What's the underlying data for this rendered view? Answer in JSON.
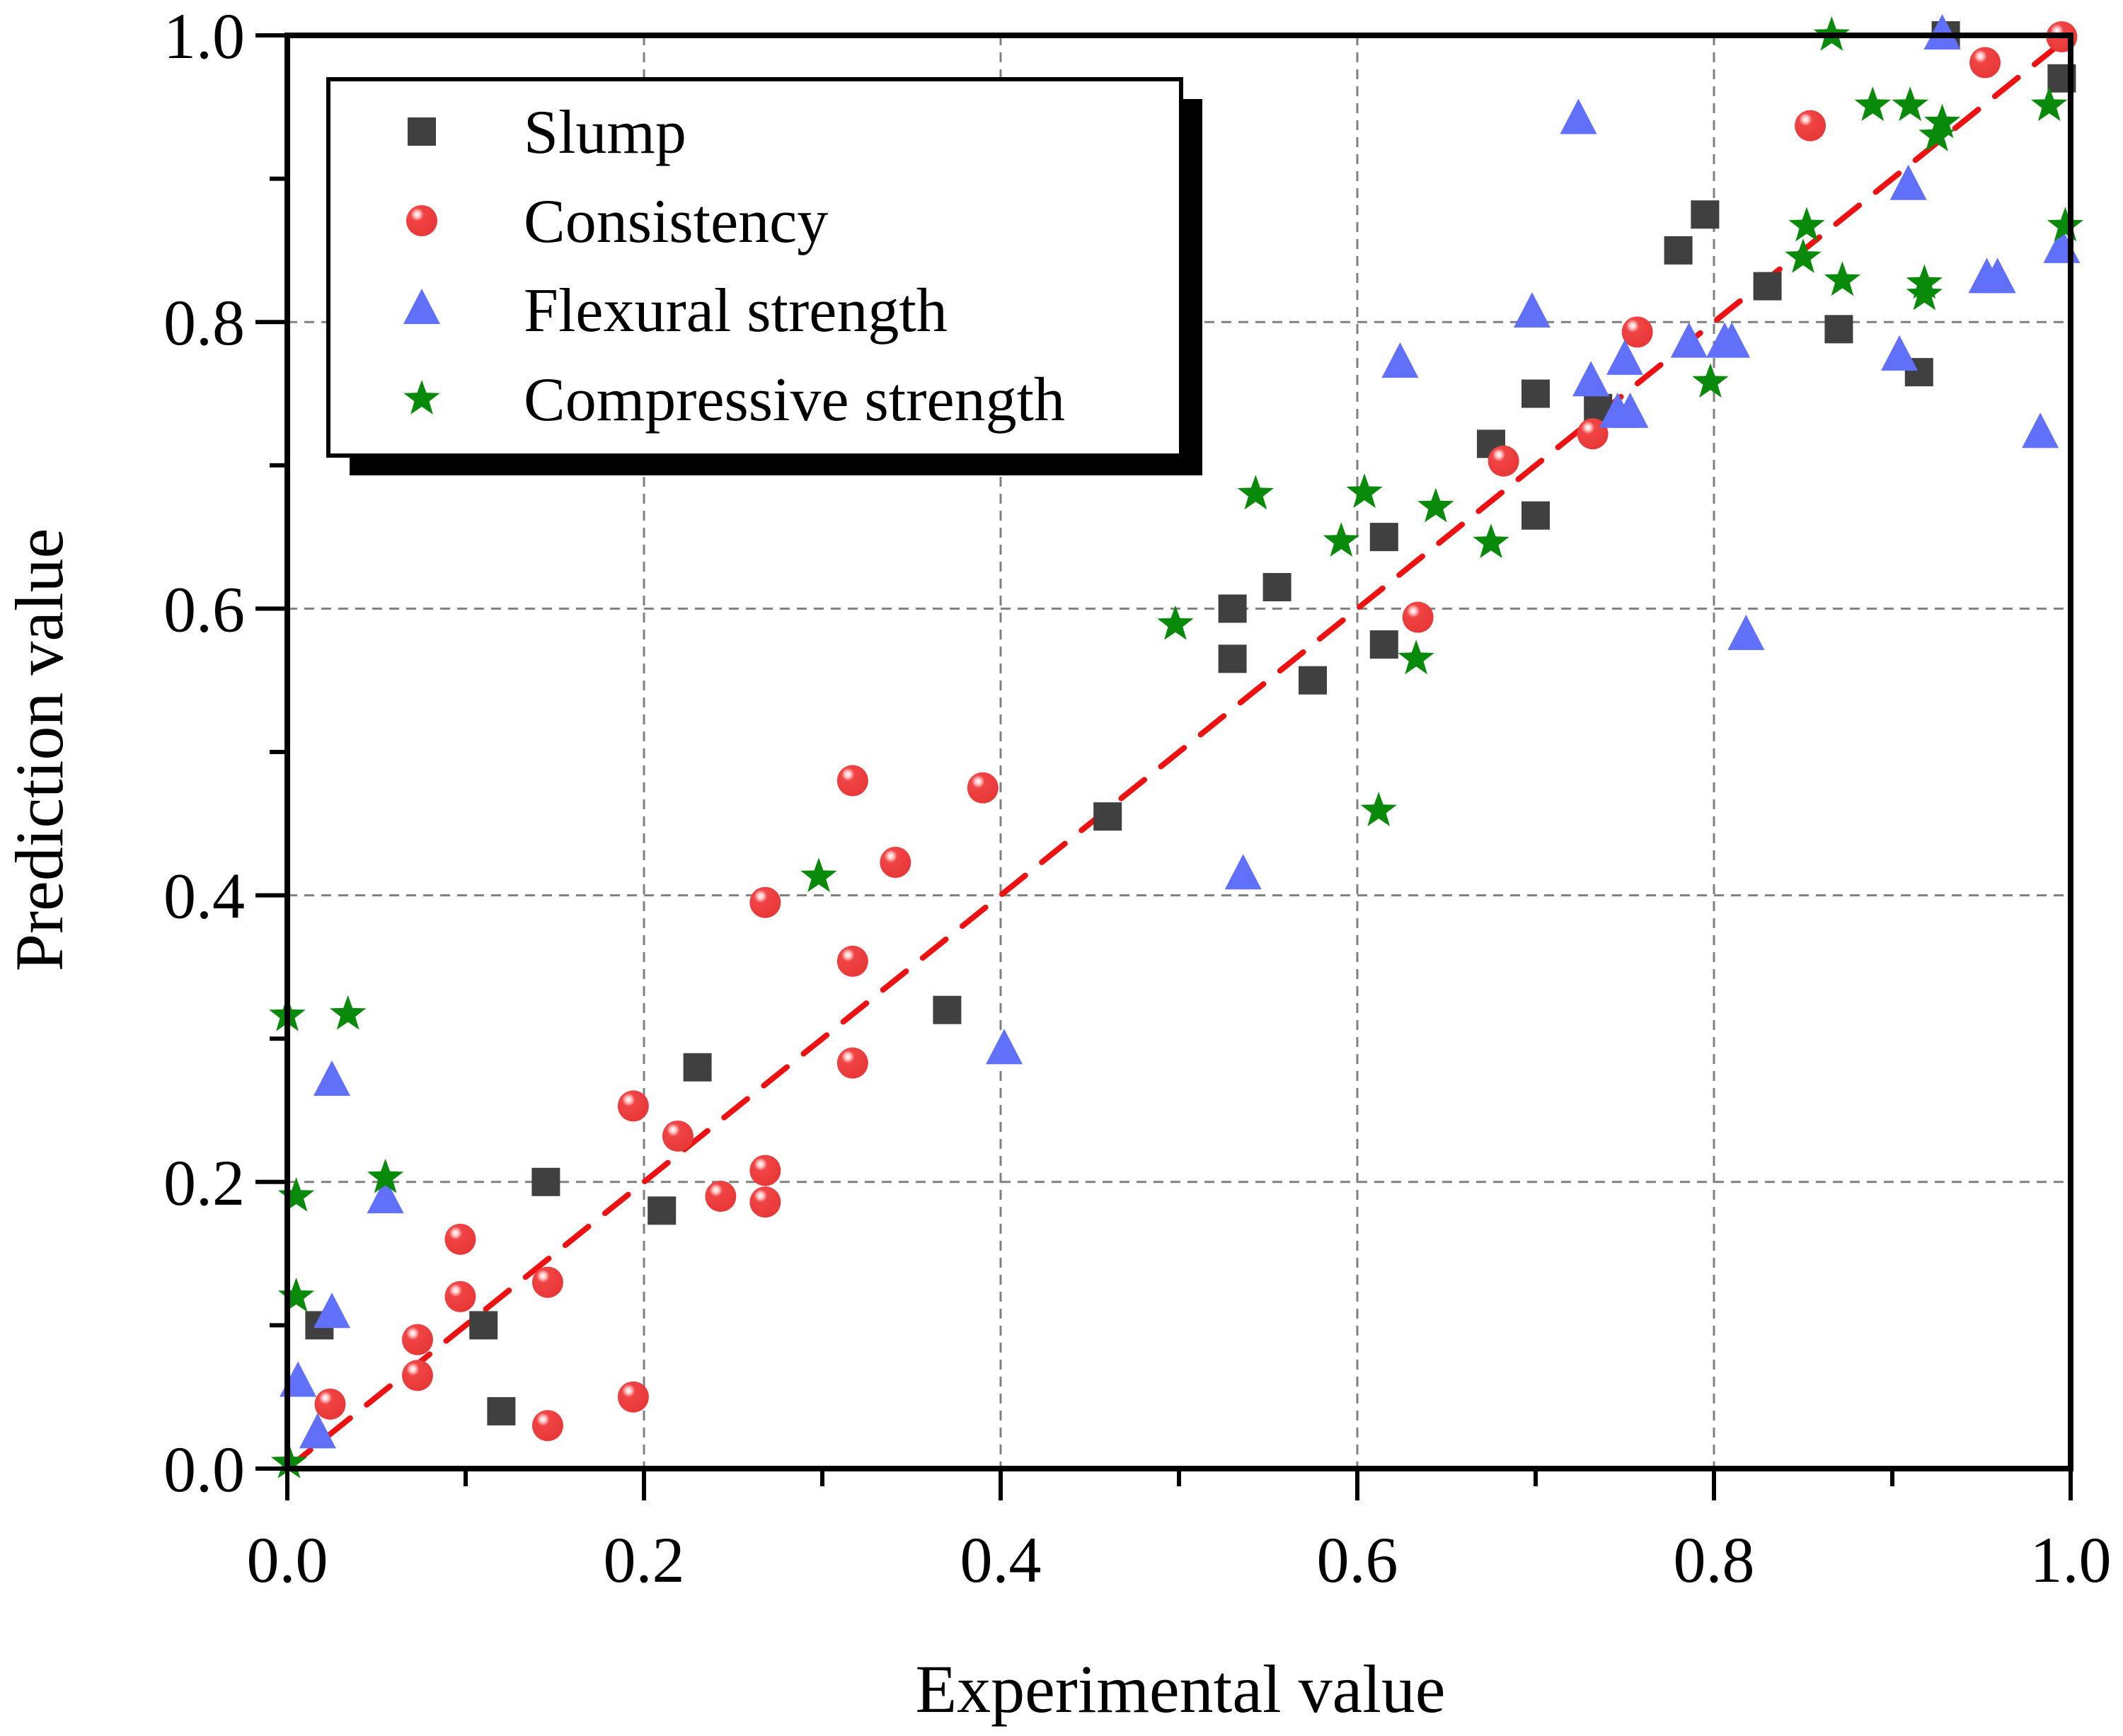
{
  "chart_data": {
    "type": "scatter",
    "title": "",
    "xlabel": "Experimental value",
    "ylabel": "Prediction value",
    "xlim": [
      0.0,
      1.0
    ],
    "ylim": [
      0.0,
      1.0
    ],
    "x_ticks": [
      "0.0",
      "0.2",
      "0.4",
      "0.6",
      "0.8",
      "1.0"
    ],
    "y_ticks": [
      "0.0",
      "0.2",
      "0.4",
      "0.6",
      "0.8",
      "1.0"
    ],
    "x_tick_values": [
      0,
      0.2,
      0.4,
      0.6,
      0.8,
      1.0
    ],
    "y_tick_values": [
      0,
      0.2,
      0.4,
      0.6,
      0.8,
      1.0
    ],
    "minor_ticks": true,
    "grid": true,
    "legend_position": "top-left",
    "reference_line": {
      "type": "y=x",
      "style": "dashed",
      "color": "#ee1111"
    },
    "series": [
      {
        "name": "Slump",
        "marker": "square",
        "color": "#404040",
        "points": [
          [
            0.018,
            0.1
          ],
          [
            0.11,
            0.1
          ],
          [
            0.12,
            0.04
          ],
          [
            0.145,
            0.2
          ],
          [
            0.21,
            0.18
          ],
          [
            0.23,
            0.28
          ],
          [
            0.37,
            0.32
          ],
          [
            0.46,
            0.455
          ],
          [
            0.53,
            0.565
          ],
          [
            0.53,
            0.6
          ],
          [
            0.555,
            0.615
          ],
          [
            0.575,
            0.55
          ],
          [
            0.615,
            0.65
          ],
          [
            0.615,
            0.575
          ],
          [
            0.675,
            0.715
          ],
          [
            0.7,
            0.75
          ],
          [
            0.7,
            0.665
          ],
          [
            0.735,
            0.74
          ],
          [
            0.78,
            0.85
          ],
          [
            0.795,
            0.875
          ],
          [
            0.83,
            0.825
          ],
          [
            0.87,
            0.795
          ],
          [
            0.915,
            0.765
          ],
          [
            0.93,
            1.0
          ],
          [
            0.995,
            0.97
          ]
        ]
      },
      {
        "name": "Consistency",
        "marker": "circle",
        "color": "#f04040",
        "points": [
          [
            0.024,
            0.045
          ],
          [
            0.073,
            0.09
          ],
          [
            0.073,
            0.065
          ],
          [
            0.097,
            0.16
          ],
          [
            0.097,
            0.12
          ],
          [
            0.146,
            0.13
          ],
          [
            0.146,
            0.03
          ],
          [
            0.194,
            0.253
          ],
          [
            0.194,
            0.05
          ],
          [
            0.219,
            0.232
          ],
          [
            0.243,
            0.19
          ],
          [
            0.268,
            0.395
          ],
          [
            0.268,
            0.208
          ],
          [
            0.268,
            0.186
          ],
          [
            0.317,
            0.48
          ],
          [
            0.317,
            0.354
          ],
          [
            0.317,
            0.283
          ],
          [
            0.341,
            0.423
          ],
          [
            0.39,
            0.475
          ],
          [
            0.634,
            0.594
          ],
          [
            0.682,
            0.703
          ],
          [
            0.732,
            0.722
          ],
          [
            0.757,
            0.793
          ],
          [
            0.854,
            0.937
          ],
          [
            0.952,
            0.981
          ],
          [
            0.995,
            0.999
          ]
        ]
      },
      {
        "name": "Flexural strength",
        "marker": "triangle",
        "color": "#6070f8",
        "points": [
          [
            0.006,
            0.06
          ],
          [
            0.017,
            0.024
          ],
          [
            0.025,
            0.108
          ],
          [
            0.025,
            0.27
          ],
          [
            0.055,
            0.188
          ],
          [
            0.402,
            0.292
          ],
          [
            0.536,
            0.414
          ],
          [
            0.624,
            0.771
          ],
          [
            0.698,
            0.806
          ],
          [
            0.724,
            0.941
          ],
          [
            0.731,
            0.758
          ],
          [
            0.746,
            0.736
          ],
          [
            0.75,
            0.773
          ],
          [
            0.753,
            0.736
          ],
          [
            0.786,
            0.785
          ],
          [
            0.806,
            0.785
          ],
          [
            0.81,
            0.785
          ],
          [
            0.818,
            0.581
          ],
          [
            0.904,
            0.776
          ],
          [
            0.909,
            0.895
          ],
          [
            0.928,
            1.0
          ],
          [
            0.953,
            0.83
          ],
          [
            0.959,
            0.83
          ],
          [
            0.983,
            0.722
          ],
          [
            0.995,
            0.851
          ]
        ]
      },
      {
        "name": "Compressive strength",
        "marker": "star",
        "color": "#0a8a0a",
        "points": [
          [
            0.0,
            0.316
          ],
          [
            0.005,
            0.19
          ],
          [
            0.005,
            0.12
          ],
          [
            0.001,
            0.004
          ],
          [
            0.034,
            0.317
          ],
          [
            0.055,
            0.203
          ],
          [
            0.298,
            0.413
          ],
          [
            0.498,
            0.589
          ],
          [
            0.543,
            0.68
          ],
          [
            0.591,
            0.647
          ],
          [
            0.604,
            0.681
          ],
          [
            0.612,
            0.459
          ],
          [
            0.633,
            0.565
          ],
          [
            0.644,
            0.671
          ],
          [
            0.675,
            0.646
          ],
          [
            0.798,
            0.758
          ],
          [
            0.852,
            0.867
          ],
          [
            0.85,
            0.845
          ],
          [
            0.872,
            0.829
          ],
          [
            0.866,
            1.0
          ],
          [
            0.889,
            0.951
          ],
          [
            0.91,
            0.951
          ],
          [
            0.918,
            0.827
          ],
          [
            0.918,
            0.819
          ],
          [
            0.925,
            0.93
          ],
          [
            0.928,
            0.939
          ],
          [
            0.988,
            0.951
          ],
          [
            0.997,
            0.867
          ]
        ]
      }
    ]
  }
}
